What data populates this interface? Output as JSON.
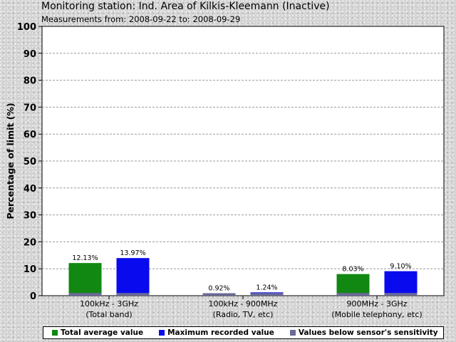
{
  "header": {
    "title": "Monitoring station: Ind. Area of Kilkis-Kleemann (Inactive)",
    "subtitle": "Measurements from: 2008-09-22 to: 2008-09-29"
  },
  "legend": {
    "items": [
      {
        "label": "Total average value",
        "color": "#118811"
      },
      {
        "label": "Maximum recorded value",
        "color": "#0a0aee"
      },
      {
        "label": "Values below sensor's sensitivity",
        "color": "#6a6a98"
      }
    ]
  },
  "chart_data": {
    "type": "bar",
    "title": "",
    "ylabel": "Percentage of limit (%)",
    "xlabel": "",
    "ylim": [
      0,
      100
    ],
    "yticks": [
      0,
      10,
      20,
      30,
      40,
      50,
      60,
      70,
      80,
      90,
      100
    ],
    "grid": true,
    "legend_position": "bottom",
    "categories": [
      {
        "line1": "100kHz - 3GHz",
        "line2": "(Total band)"
      },
      {
        "line1": "100kHz - 900MHz",
        "line2": "(Radio, TV, etc)"
      },
      {
        "line1": "900MHz - 3GHz",
        "line2": "(Mobile telephony, etc)"
      }
    ],
    "series": [
      {
        "name": "Total average value",
        "color": "#118811",
        "values": [
          12.13,
          0.92,
          8.03
        ],
        "labels": [
          "12.13%",
          "0.92%",
          "8.03%"
        ]
      },
      {
        "name": "Maximum recorded value",
        "color": "#0a0aee",
        "values": [
          13.97,
          1.24,
          9.1
        ],
        "labels": [
          "13.97%",
          "1.24%",
          "9.10%"
        ]
      }
    ],
    "sensitivity_threshold": {
      "name": "Values below sensor's sensitivity",
      "color": "#6a6a98",
      "value": 1.0
    }
  }
}
